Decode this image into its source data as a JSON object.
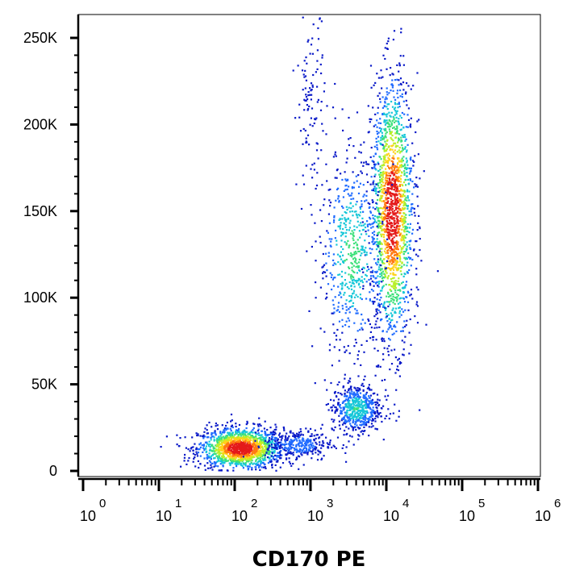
{
  "chart_data": {
    "type": "scatter",
    "style": "density-dot-plot",
    "xlabel": "CD170 PE",
    "ylabel": "",
    "x_scale": "log",
    "x_range": [
      1,
      1000000
    ],
    "y_range": [
      0,
      262144
    ],
    "grid": false,
    "x_ticks": [
      {
        "base": "10",
        "exp": "0",
        "value": 1
      },
      {
        "base": "10",
        "exp": "1",
        "value": 10
      },
      {
        "base": "10",
        "exp": "2",
        "value": 100
      },
      {
        "base": "10",
        "exp": "3",
        "value": 1000
      },
      {
        "base": "10",
        "exp": "4",
        "value": 10000
      },
      {
        "base": "10",
        "exp": "5",
        "value": 100000
      },
      {
        "base": "10",
        "exp": "6",
        "value": 1000000
      }
    ],
    "y_ticks": [
      {
        "label": "0",
        "value": 0
      },
      {
        "label": "50K",
        "value": 50000
      },
      {
        "label": "100K",
        "value": 100000
      },
      {
        "label": "150K",
        "value": 150000
      },
      {
        "label": "200K",
        "value": 200000
      },
      {
        "label": "250K",
        "value": 250000
      }
    ],
    "density_colormap": [
      "#0a1ac8",
      "#1f6bff",
      "#17c7d8",
      "#3de07a",
      "#b8ef2a",
      "#ffd21a",
      "#ff7a10",
      "#e41a1a"
    ],
    "populations": [
      {
        "name": "",
        "x_center": 120,
        "y_center": 13000,
        "x_spread_decades": 0.28,
        "y_spread": 6000,
        "count": 1500
      },
      {
        "name": "",
        "x_center": 700,
        "y_center": 15000,
        "x_spread_decades": 0.22,
        "y_spread": 4500,
        "count": 300
      },
      {
        "name": "",
        "x_center": 4000,
        "y_center": 36000,
        "x_spread_decades": 0.16,
        "y_spread": 7000,
        "count": 550
      },
      {
        "name": "",
        "x_center": 12000,
        "y_center": 150000,
        "x_spread_decades": 0.14,
        "y_spread": 38000,
        "count": 1700
      },
      {
        "name": "",
        "x_center": 3500,
        "y_center": 125000,
        "x_spread_decades": 0.22,
        "y_spread": 30000,
        "count": 600
      },
      {
        "name": "",
        "x_center": 1000,
        "y_center": 215000,
        "x_spread_decades": 0.09,
        "y_spread": 25000,
        "count": 110
      }
    ]
  }
}
